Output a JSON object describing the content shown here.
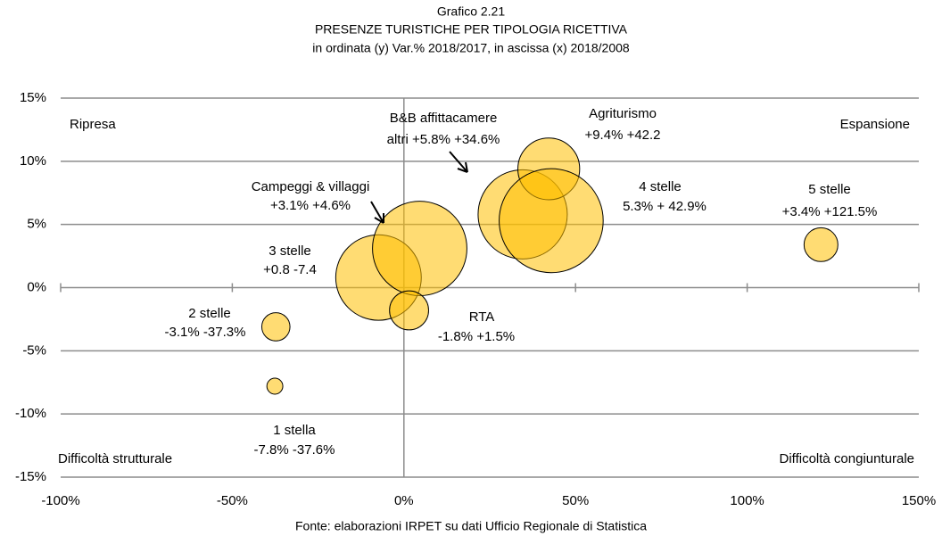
{
  "chart_data": {
    "type": "bubble",
    "title": "Grafico 2.21",
    "subtitle": "PRESENZE TURISTICHE PER TIPOLOGIA RICETTIVA",
    "axis_note": "in ordinata (y) Var.% 2018/2017, in ascissa (x) 2018/2008",
    "source": "Fonte: elaborazioni IRPET su dati Ufficio Regionale di Statistica",
    "annotations": [
      "Ripresa",
      "Espansione",
      "Difficoltà strutturale",
      "Difficoltà congiunturale"
    ],
    "xlim": [
      -100,
      150
    ],
    "ylim": [
      -15,
      15
    ],
    "xticks": [
      {
        "value": -100,
        "label": "-100%"
      },
      {
        "value": -50,
        "label": "-50%"
      },
      {
        "value": 0,
        "label": "0%"
      },
      {
        "value": 50,
        "label": "50%"
      },
      {
        "value": 100,
        "label": "100%"
      },
      {
        "value": 150,
        "label": "150%"
      }
    ],
    "yticks": [
      {
        "value": -15,
        "label": "-15%"
      },
      {
        "value": -10,
        "label": "-10%"
      },
      {
        "value": -5,
        "label": "-5%"
      },
      {
        "value": 0,
        "label": "0%"
      },
      {
        "value": 5,
        "label": "5%"
      },
      {
        "value": 10,
        "label": "10%"
      },
      {
        "value": 15,
        "label": "15%"
      }
    ],
    "grid": true,
    "color": "#FFC000",
    "names": [
      "1 stella",
      "2 stelle",
      "3 stelle",
      "Campeggi & villaggi",
      "RTA",
      "B&B affittacamere",
      "Agriturismo",
      "4 stelle",
      "5 stelle"
    ],
    "x": [
      -37.6,
      -37.3,
      -7.4,
      4.6,
      1.5,
      34.6,
      42.2,
      42.9,
      121.5
    ],
    "y": [
      -7.8,
      -3.1,
      0.8,
      3.1,
      -1.8,
      5.8,
      9.4,
      5.3,
      3.4
    ],
    "sizes": [
      80,
      250,
      2300,
      2800,
      480,
      2500,
      1200,
      3400,
      360
    ],
    "value_labels": [
      "-7.8% -37.6%",
      "-3.1% -37.3%",
      "+0.8 -7.4",
      "+3.1% +4.6%",
      "-1.8% +1.5%",
      "altri +5.8% +34.6%",
      "+9.4% +42.2",
      "5.3% + 42.9%",
      "+3.4%   +121.5%"
    ]
  }
}
